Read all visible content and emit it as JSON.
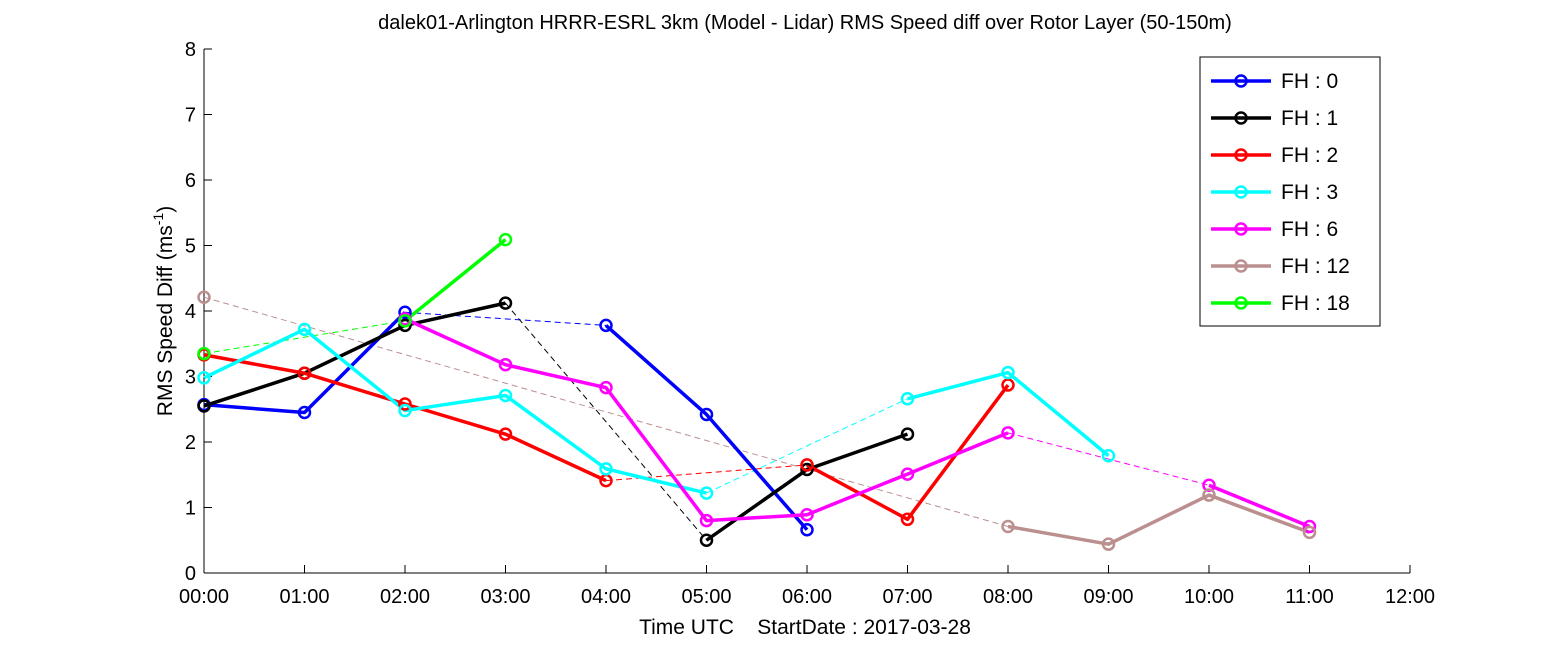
{
  "chart_data": {
    "type": "line",
    "title": "dalek01-Arlington HRRR-ESRL 3km (Model - Lidar) RMS Speed diff over Rotor Layer (50-150m)",
    "xlabel": "Time UTC    StartDate : 2017-03-28",
    "ylabel": "RMS Speed Diff (ms",
    "ylabel_sup": "-1",
    "ylabel_end": ")",
    "xlim": [
      0,
      12
    ],
    "ylim": [
      0,
      8
    ],
    "x_ticks": [
      0,
      1,
      2,
      3,
      4,
      5,
      6,
      7,
      8,
      9,
      10,
      11,
      12
    ],
    "x_tick_labels": [
      "00:00",
      "01:00",
      "02:00",
      "03:00",
      "04:00",
      "05:00",
      "06:00",
      "07:00",
      "08:00",
      "09:00",
      "10:00",
      "11:00",
      "12:00"
    ],
    "y_ticks": [
      0,
      1,
      2,
      3,
      4,
      5,
      6,
      7,
      8
    ],
    "y_tick_labels": [
      "0",
      "1",
      "2",
      "3",
      "4",
      "5",
      "6",
      "7",
      "8"
    ],
    "grid": false,
    "legend_position": "top-right",
    "series": [
      {
        "name": "FH : 0",
        "color": "#0000ff",
        "segments": [
          [
            [
              0,
              2.57
            ],
            [
              1,
              2.45
            ],
            [
              2,
              3.98
            ]
          ],
          [
            [
              4,
              3.78
            ],
            [
              5,
              2.42
            ],
            [
              6,
              0.66
            ]
          ]
        ]
      },
      {
        "name": "FH : 1",
        "color": "#000000",
        "segments": [
          [
            [
              0,
              2.55
            ],
            [
              1,
              3.05
            ],
            [
              2,
              3.78
            ],
            [
              3,
              4.12
            ]
          ],
          [
            [
              5,
              0.5
            ],
            [
              6,
              1.58
            ],
            [
              7,
              2.12
            ]
          ]
        ]
      },
      {
        "name": "FH : 2",
        "color": "#ff0000",
        "segments": [
          [
            [
              0,
              3.33
            ],
            [
              1,
              3.05
            ],
            [
              2,
              2.58
            ],
            [
              3,
              2.12
            ],
            [
              4,
              1.41
            ]
          ],
          [
            [
              6,
              1.65
            ],
            [
              7,
              0.82
            ],
            [
              8,
              2.87
            ]
          ]
        ]
      },
      {
        "name": "FH : 3",
        "color": "#00ffff",
        "segments": [
          [
            [
              0,
              2.98
            ],
            [
              1,
              3.72
            ],
            [
              2,
              2.48
            ],
            [
              3,
              2.71
            ],
            [
              4,
              1.59
            ],
            [
              5,
              1.22
            ]
          ],
          [
            [
              7,
              2.66
            ],
            [
              8,
              3.06
            ],
            [
              9,
              1.79
            ]
          ]
        ]
      },
      {
        "name": "FH : 6",
        "color": "#ff00ff",
        "segments": [
          [
            [
              2,
              3.88
            ],
            [
              3,
              3.18
            ],
            [
              4,
              2.83
            ],
            [
              5,
              0.8
            ],
            [
              6,
              0.89
            ],
            [
              7,
              1.51
            ],
            [
              8,
              2.14
            ]
          ],
          [
            [
              10,
              1.34
            ],
            [
              11,
              0.71
            ]
          ]
        ]
      },
      {
        "name": "FH : 12",
        "color": "#bc8f8f",
        "segments": [
          [
            [
              0,
              4.21
            ]
          ],
          [
            [
              8,
              0.71
            ],
            [
              9,
              0.44
            ],
            [
              10,
              1.19
            ],
            [
              11,
              0.62
            ]
          ]
        ]
      },
      {
        "name": "FH : 18",
        "color": "#00ff00",
        "segments": [
          [
            [
              0,
              3.35
            ]
          ],
          [
            [
              2,
              3.85
            ],
            [
              3,
              5.09
            ]
          ]
        ]
      }
    ]
  }
}
